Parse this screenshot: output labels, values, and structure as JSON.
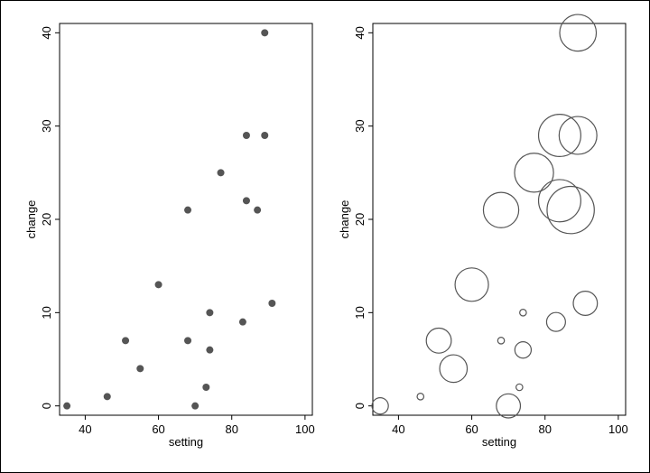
{
  "chart_data": [
    {
      "type": "scatter",
      "title": "",
      "xlabel": "setting",
      "ylabel": "change",
      "xlim": [
        33,
        102
      ],
      "ylim": [
        -1,
        41
      ],
      "x_ticks": [
        "40",
        "60",
        "80",
        "100"
      ],
      "y_ticks": [
        "0",
        "10",
        "20",
        "30",
        "40"
      ],
      "marker_color": "#555555",
      "points": [
        {
          "x": 35,
          "y": 0
        },
        {
          "x": 46,
          "y": 1
        },
        {
          "x": 51,
          "y": 7
        },
        {
          "x": 55,
          "y": 4
        },
        {
          "x": 60,
          "y": 13
        },
        {
          "x": 68,
          "y": 21
        },
        {
          "x": 68,
          "y": 7
        },
        {
          "x": 70,
          "y": 0
        },
        {
          "x": 73,
          "y": 2
        },
        {
          "x": 74,
          "y": 10
        },
        {
          "x": 74,
          "y": 6
        },
        {
          "x": 77,
          "y": 25
        },
        {
          "x": 83,
          "y": 9
        },
        {
          "x": 84,
          "y": 29
        },
        {
          "x": 84,
          "y": 22
        },
        {
          "x": 87,
          "y": 21
        },
        {
          "x": 89,
          "y": 40
        },
        {
          "x": 89,
          "y": 29
        },
        {
          "x": 91,
          "y": 11
        }
      ]
    },
    {
      "type": "scatter",
      "title": "",
      "xlabel": "setting",
      "ylabel": "change",
      "xlim": [
        33,
        102
      ],
      "ylim": [
        -1,
        41
      ],
      "x_ticks": [
        "40",
        "60",
        "80",
        "100"
      ],
      "y_ticks": [
        "0",
        "10",
        "20",
        "30",
        "40"
      ],
      "marker_color": "#555555",
      "marker_style": "hollow circles, size by weight",
      "points": [
        {
          "x": 35,
          "y": 0,
          "size": 0.6
        },
        {
          "x": 46,
          "y": 1,
          "size": 0.1
        },
        {
          "x": 51,
          "y": 7,
          "size": 1.4
        },
        {
          "x": 55,
          "y": 4,
          "size": 1.7
        },
        {
          "x": 60,
          "y": 13,
          "size": 2.5
        },
        {
          "x": 68,
          "y": 21,
          "size": 2.8
        },
        {
          "x": 68,
          "y": 7,
          "size": 0.1
        },
        {
          "x": 70,
          "y": 0,
          "size": 1.3
        },
        {
          "x": 73,
          "y": 2,
          "size": 0.1
        },
        {
          "x": 74,
          "y": 10,
          "size": 0.1
        },
        {
          "x": 74,
          "y": 6,
          "size": 0.6
        },
        {
          "x": 77,
          "y": 25,
          "size": 3.4
        },
        {
          "x": 83,
          "y": 9,
          "size": 0.8
        },
        {
          "x": 84,
          "y": 29,
          "size": 4.0
        },
        {
          "x": 84,
          "y": 22,
          "size": 4.0
        },
        {
          "x": 87,
          "y": 21,
          "size": 5.0
        },
        {
          "x": 89,
          "y": 40,
          "size": 3.0
        },
        {
          "x": 89,
          "y": 29,
          "size": 3.2
        },
        {
          "x": 91,
          "y": 11,
          "size": 1.3
        }
      ]
    }
  ]
}
